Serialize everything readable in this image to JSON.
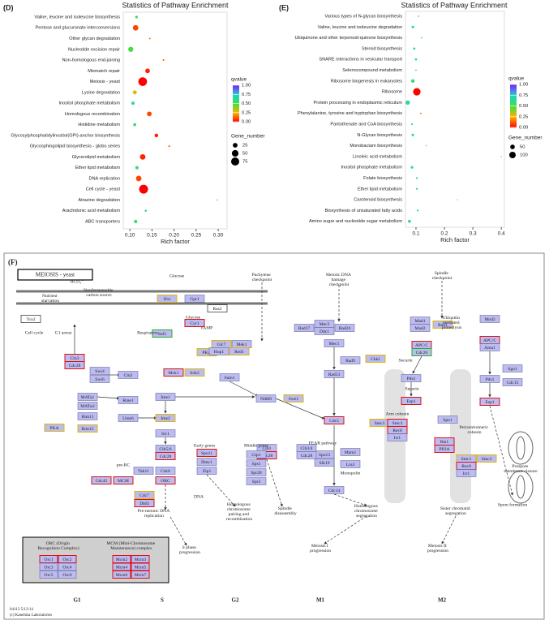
{
  "panel_labels": [
    "(D)",
    "(E)",
    "(F)"
  ],
  "chart_data": [
    {
      "type": "bubble",
      "title": "Statistics of Pathway Enrichment",
      "x_label": "Rich factor",
      "categories": [
        "Valine, leucine and isoleucine biosynthesis",
        "Pentose and glucuronate interconversions",
        "Other glycan degradation",
        "Nucleotide excision repair",
        "Non-homologous end-joining",
        "Mismatch repair",
        "Meiosis - yeast",
        "Lysine degradation",
        "Inositol phosphate metabolism",
        "Homologous recombination",
        "Histidine metabolism",
        "Glycosylphosphatidylinositol(GPI)-anchor biosynthesis",
        "Glycosphingolipid biosynthesis - globo series",
        "Glycerolipid metabolism",
        "Ether lipid metabolism",
        "DNA replication",
        "Cell cycle - yeast",
        "Atrazine degradation",
        "Arachidonic acid metabolism",
        "ABC transporters"
      ],
      "values": [
        0.115,
        0.113,
        0.145,
        0.102,
        0.176,
        0.14,
        0.129,
        0.111,
        0.107,
        0.144,
        0.111,
        0.16,
        0.189,
        0.129,
        0.116,
        0.12,
        0.131,
        0.298,
        0.136,
        0.113
      ],
      "sizes": [
        8,
        35,
        3,
        30,
        3,
        25,
        85,
        18,
        12,
        25,
        10,
        15,
        3,
        35,
        12,
        35,
        90,
        2,
        5,
        12
      ],
      "qvalues": [
        0.6,
        0.1,
        0.15,
        0.5,
        0.1,
        0.05,
        0,
        0.3,
        0.65,
        0.1,
        0.6,
        0.05,
        0.1,
        0.05,
        0.6,
        0.1,
        0,
        0.2,
        0.6,
        0.6
      ],
      "xlim": [
        0.085,
        0.32
      ],
      "xticks": [
        {
          "value": 0.1,
          "label": "0.10"
        },
        0.15,
        {
          "value": 0.2,
          "label": "0.20"
        },
        0.25,
        {
          "value": 0.3,
          "label": "0.30"
        }
      ],
      "color_legend_title": "qvalue",
      "qlim": [
        0,
        1
      ],
      "colorbar_ticks": [
        {
          "value": 1,
          "label": "1.00"
        },
        0.75,
        {
          "value": 0.5,
          "label": "0.50"
        },
        0.25,
        {
          "value": 0,
          "label": "0.00"
        }
      ],
      "colorscale": [
        "#ff0000",
        "#ffb000",
        "#40e040",
        "#20d0d0",
        "#8020ff"
      ],
      "size_legend_title": "Gene_number",
      "size_legend": [
        25,
        50,
        75
      ]
    },
    {
      "type": "bubble",
      "title": "Statistics of Pathway Enrichment",
      "x_label": "Rich factor",
      "categories": [
        "Various types of N-glycan biosynthesis",
        "Valine, leucine and isoleucine degradation",
        "Ubiquinone and other terpenoid-quinone biosynthesis",
        "Steroid biosynthesis",
        "SNARE interactions in vesicular transport",
        "Selenocompound metabolism",
        "Ribosome biogenesis in eukaryotes",
        "Ribosome",
        "Protein processing in endoplasmic reticulum",
        "Phenylalanine, tyrosine and tryptophan biosynthesis",
        "Pantothenate and CoA biosynthesis",
        "N-Glycan biosynthesis",
        "Monobactam biosynthesis",
        "Linoleic acid metabolism",
        "Inositol phosphate metabolism",
        "Folate biosynthesis",
        "Ether lipid metabolism",
        "Carotenoid biosynthesis",
        "Biosynthesis of unsaturated fatty acids",
        "Amino sugar and nucleotide sugar metabolism"
      ],
      "values": [
        0.109,
        0.089,
        0.12,
        0.094,
        0.1,
        0.1,
        0.089,
        0.103,
        0.071,
        0.117,
        0.086,
        0.089,
        0.137,
        0.4,
        0.086,
        0.103,
        0.103,
        0.246,
        0.106,
        0.077
      ],
      "sizes": [
        5,
        15,
        5,
        12,
        12,
        5,
        30,
        130,
        45,
        5,
        8,
        15,
        3,
        3,
        15,
        8,
        8,
        3,
        8,
        20
      ],
      "qvalues": [
        0.6,
        0.7,
        0.7,
        0.7,
        0.7,
        0.7,
        0.6,
        0,
        0.65,
        0.15,
        0.7,
        0.7,
        0.7,
        0.7,
        0.7,
        0.7,
        0.7,
        0.25,
        0.7,
        0.65
      ],
      "xlim": [
        0.063,
        0.411
      ],
      "xticks": [
        0.1,
        0.2,
        0.3,
        0.4
      ],
      "color_legend_title": "qvalue",
      "qlim": [
        0,
        1
      ],
      "colorbar_ticks": [
        {
          "value": 1,
          "label": "1.00"
        },
        0.75,
        {
          "value": 0.5,
          "label": "0.50"
        },
        0.25,
        {
          "value": 0,
          "label": "0.00"
        }
      ],
      "colorscale": [
        "#ff0000",
        "#ffb000",
        "#40e040",
        "#20d0d0",
        "#8020ff"
      ],
      "size_legend_title": "Gene_number",
      "size_legend": [
        50,
        100
      ]
    }
  ],
  "diagram": {
    "title": "MEIOSIS - yeast",
    "genes": [
      "Tco2",
      "Hxt",
      "Gpr1",
      "Ras2",
      "Snf1",
      "Cyr1",
      "PKA",
      "Mck1",
      "Sok2",
      "Cln3",
      "Cdc28",
      "Swi4",
      "Swi6",
      "Cln2",
      "MATa1",
      "MATα2",
      "Rme1",
      "Rim11",
      "Rim15",
      "PKA",
      "Ime1",
      "Ume6",
      "Ime2",
      "Sic1",
      "Clb5/6",
      "Cdc28",
      "Tah11",
      "Cdc6",
      "Cdc45",
      "MCM",
      "ORC",
      "Cdc7",
      "Dbf4",
      "Glc7",
      "Mek1",
      "Hop1",
      "Red1",
      "Rad17",
      "Mec3",
      "Ddc1",
      "Rad24",
      "Mec1",
      "Rad9",
      "Chk1",
      "Rad53",
      "Sum1",
      "Ndt80",
      "Swe1",
      "Cdc5",
      "Spo13",
      "Slk19",
      "Mam1",
      "Lrs4",
      "Cdc14",
      "Clb1",
      "Cdc28",
      "Clb3/4",
      "Cdc28",
      "Spo11",
      "Dmc1",
      "Zip1",
      "Gip1",
      "Sps1",
      "Spr28",
      "Spr3",
      "Mad1",
      "Mad2",
      "Bub1",
      "APC/C",
      "Cdc20",
      "Mnd2",
      "APC/C",
      "Ama1",
      "Pds1",
      "Pds1",
      "Esp1",
      "Esp1",
      "Sgo1",
      "Cdc15",
      "Smc1",
      "Smc3",
      "Rec8",
      "Irr1",
      "Spo1",
      "Rts1",
      "PP2A",
      "Smc1",
      "Smc3",
      "Rec8",
      "Irr1"
    ],
    "labels": [
      "Nutrient starvation",
      "HCO₃⁻",
      "Nonfermentable carbon source",
      "Glucose",
      "Glucose",
      "Pachytene checkpoint",
      "Meiotic DNA damage checkpoint",
      "Spindle checkpoint",
      "Cell cycle",
      "G1 arrest",
      "Respiration",
      "cAMP",
      "Ubiquitin mediated proteolysis",
      "Securin",
      "Separin",
      "Arm cohesin",
      "Pericentromeric cohesin",
      "FEAR pathway",
      "Monopolin",
      "Early genes",
      "Middle genes",
      "pre-RC",
      "DNA",
      "Pre-meiotic DNA replication",
      "Homologous chromosome pairing and recombination",
      "Spindle disassembly",
      "Homologous chromosome segregation",
      "Sister chromatid segregation",
      "Spore formation",
      "Prospore membrane closure",
      "S phase progression",
      "Meiosis I progression",
      "Meiosis II progression"
    ],
    "phases": [
      "G1",
      "S",
      "G2",
      "M1",
      "M2"
    ],
    "legend": {
      "orc_title": "ORC (Origin Recognition Complex)",
      "mcm_title": "MCM (Mini-Chromosome Maintenance) complex",
      "orc": [
        "Orc1",
        "Orc2",
        "Orc3",
        "Orc4",
        "Orc5",
        "Orc6"
      ],
      "mcm": [
        "Mcm2",
        "Mcm3",
        "Mcm4",
        "Mcm5",
        "Mcm6",
        "Mcm7"
      ]
    },
    "footer": [
      "04113 5/13/14",
      "(c) Kanehisa Laboratories"
    ]
  }
}
